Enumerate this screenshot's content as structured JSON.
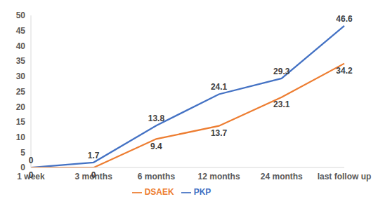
{
  "chart_data": {
    "type": "line",
    "categories": [
      "1 week",
      "3 months",
      "6 months",
      "12 months",
      "24 months",
      "last follow up"
    ],
    "series": [
      {
        "name": "PKP",
        "color": "#4472c4",
        "values": [
          0,
          1.7,
          13.8,
          24.1,
          29.3,
          46.6
        ]
      },
      {
        "name": "DSAEK",
        "color": "#ed7d31",
        "values": [
          0,
          0,
          9.4,
          13.7,
          23.1,
          34.2
        ]
      }
    ],
    "ylim": [
      0,
      50
    ],
    "yticks": [
      0,
      5,
      10,
      15,
      20,
      25,
      30,
      35,
      40,
      45,
      50
    ],
    "grid": false,
    "legend": "bottom",
    "data_labels": true
  }
}
